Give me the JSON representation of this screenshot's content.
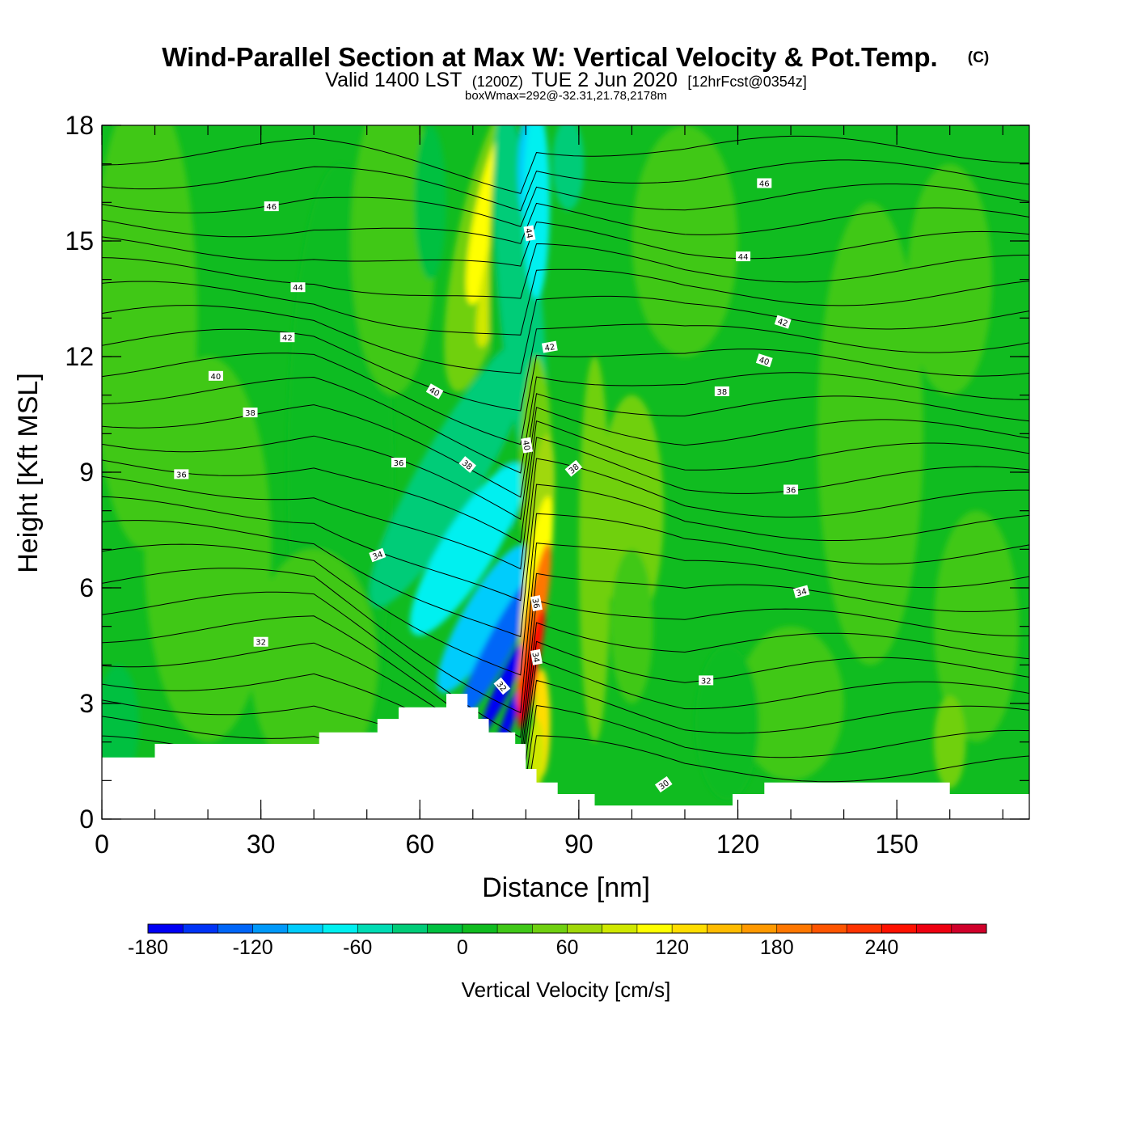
{
  "header": {
    "title": "Wind-Parallel Section at Max W: Vertical Velocity & Pot.Temp.",
    "copyright": "(C)",
    "subtitle": {
      "valid": "Valid 1400 LST",
      "utc": "(1200Z)",
      "date": "TUE 2 Jun 2020",
      "forecast": "[12hrFcst@0354z]"
    },
    "box_info": "boxWmax=292@-32.31,21.78,2178m"
  },
  "chart_data": {
    "type": "heatmap",
    "title": "Wind-Parallel Section at Max W: Vertical Velocity & Pot.Temp.",
    "xlabel": "Distance [nm]",
    "ylabel": "Height [Kft MSL]",
    "xlim": [
      0,
      175
    ],
    "ylim": [
      0,
      18
    ],
    "x_ticks": [
      0,
      30,
      60,
      90,
      120,
      150
    ],
    "x_tick_labels": [
      "0",
      "30",
      "60",
      "90",
      "120",
      "150"
    ],
    "y_ticks": [
      0,
      3,
      6,
      9,
      12,
      15,
      18
    ],
    "y_tick_labels": [
      "0",
      "3",
      "6",
      "9",
      "12",
      "15",
      "18"
    ],
    "grid": false,
    "colorbar": {
      "label": "Vertical Velocity [cm/s]",
      "levels": [
        -180,
        -165,
        -150,
        -135,
        -120,
        -105,
        -90,
        -75,
        -60,
        -45,
        -30,
        -15,
        0,
        15,
        30,
        45,
        60,
        75,
        90,
        105,
        120,
        135,
        150,
        165,
        180,
        195,
        210,
        225,
        240,
        255,
        270,
        285,
        300
      ],
      "tick_values": [
        -180,
        -120,
        -60,
        0,
        60,
        120,
        180,
        240
      ],
      "tick_labels": [
        "-180",
        "-120",
        "-60",
        "0",
        "60",
        "120",
        "180",
        "240"
      ],
      "colors": [
        "#0000f4",
        "#0033f6",
        "#0066f8",
        "#0099fa",
        "#00ccfc",
        "#00ffff",
        "#00ecc8",
        "#00dc8c",
        "#00cc5a",
        "#00c030",
        "#10c020",
        "#40c818",
        "#70d010",
        "#a0d808",
        "#d0e800",
        "#ffff00",
        "#ffdd00",
        "#ffbb00",
        "#ff9900",
        "#ff7700",
        "#ff5500",
        "#ff3300",
        "#ff1100",
        "#d0002a"
      ],
      "colors_ticked": [
        "#0000f4",
        "#0033f6",
        "#0066f8",
        "#0099fa",
        "#00ccfc",
        "#00f0f0",
        "#00dcb4",
        "#00cc78",
        "#00c040",
        "#10bc20",
        "#40c818",
        "#70d010",
        "#a0d808",
        "#d0e800",
        "#ffff00",
        "#ffdd00",
        "#ffbb00",
        "#ff9900",
        "#ff7700",
        "#ff5500",
        "#ff3300",
        "#ff1100",
        "#ee0010",
        "#d0002a"
      ]
    },
    "contour_labels": [
      {
        "x": 32,
        "y": 15.9,
        "text": "46",
        "angle": 0
      },
      {
        "x": 125,
        "y": 16.5,
        "text": "46",
        "angle": 0
      },
      {
        "x": 80.7,
        "y": 15.2,
        "text": "44",
        "angle": 80
      },
      {
        "x": 37,
        "y": 13.8,
        "text": "44",
        "angle": 0
      },
      {
        "x": 121,
        "y": 14.6,
        "text": "44",
        "angle": 0
      },
      {
        "x": 35,
        "y": 12.5,
        "text": "42",
        "angle": 0
      },
      {
        "x": 84.5,
        "y": 12.25,
        "text": "42",
        "angle": -10
      },
      {
        "x": 128.5,
        "y": 12.9,
        "text": "42",
        "angle": 18
      },
      {
        "x": 21.5,
        "y": 11.5,
        "text": "40",
        "angle": 0
      },
      {
        "x": 62.8,
        "y": 11.1,
        "text": "40",
        "angle": 30
      },
      {
        "x": 80.2,
        "y": 9.7,
        "text": "40",
        "angle": 80
      },
      {
        "x": 125,
        "y": 11.9,
        "text": "40",
        "angle": 18
      },
      {
        "x": 28,
        "y": 10.55,
        "text": "38",
        "angle": 0
      },
      {
        "x": 69,
        "y": 9.2,
        "text": "38",
        "angle": 40
      },
      {
        "x": 89,
        "y": 9.1,
        "text": "38",
        "angle": -40
      },
      {
        "x": 117,
        "y": 11.1,
        "text": "38",
        "angle": 0
      },
      {
        "x": 15,
        "y": 8.95,
        "text": "36",
        "angle": 0
      },
      {
        "x": 56,
        "y": 9.25,
        "text": "36",
        "angle": 0
      },
      {
        "x": 82,
        "y": 5.6,
        "text": "36",
        "angle": 80
      },
      {
        "x": 130,
        "y": 8.55,
        "text": "36",
        "angle": 0
      },
      {
        "x": 52,
        "y": 6.85,
        "text": "34",
        "angle": -20
      },
      {
        "x": 82,
        "y": 4.2,
        "text": "34",
        "angle": 80
      },
      {
        "x": 132,
        "y": 5.9,
        "text": "34",
        "angle": -15
      },
      {
        "x": 30,
        "y": 4.6,
        "text": "32",
        "angle": 0
      },
      {
        "x": 75.5,
        "y": 3.45,
        "text": "32",
        "angle": 50
      },
      {
        "x": 114,
        "y": 3.6,
        "text": "32",
        "angle": 0
      },
      {
        "x": 106,
        "y": 0.9,
        "text": "30",
        "angle": -35
      }
    ]
  }
}
